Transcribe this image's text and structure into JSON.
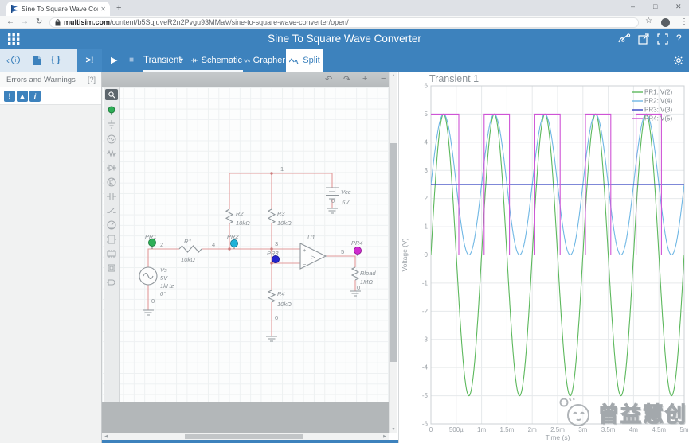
{
  "browser": {
    "tab": {
      "title": "Sine To Square Wave Convert..."
    },
    "address": {
      "domain": "multisim.com",
      "path": "/content/b5SqjuveR2n2Pvgu93MMaV/sine-to-square-wave-converter/open/"
    }
  },
  "icons": {
    "tab_close": "✕",
    "new_tab": "+",
    "win_min": "–",
    "win_max": "□",
    "win_close": "✕",
    "back": "←",
    "forward": "→",
    "reload": "↻",
    "star": "☆",
    "menu": "⋮",
    "help": "?",
    "play": "▶",
    "stop": "■",
    "caret_down": "▾",
    "undo": "↶",
    "redo": "↷",
    "zoom_in": "+",
    "zoom_out": "−",
    "panel_collapse": "‹",
    "panel_info": "i",
    "braces": "{ }",
    "errors_tab": ">!",
    "err_exclaim": "!",
    "err_warn": "▲",
    "err_info": "i",
    "scroll_up": "▲",
    "scroll_down": "▼",
    "scroll_left": "◀",
    "scroll_right": "▶"
  },
  "app_header": {
    "title": "Sine To Square Wave Converter"
  },
  "toolbar": {
    "sim_mode": "Transient",
    "tabs": {
      "schematic": "Schematic",
      "grapher": "Grapher",
      "split": "Split"
    }
  },
  "errors_panel": {
    "title": "Errors and Warnings",
    "help_badge": "[?]"
  },
  "schematic": {
    "probe_colors": {
      "pr1": "#2fae57",
      "pr2": "#1fb2d8",
      "pr3": "#2424cf",
      "pr4": "#cf2bcf"
    },
    "labels": {
      "node1": "1",
      "node2": "2",
      "node3": "3",
      "node4": "4",
      "node5": "5",
      "pr1": "PR1",
      "pr2": "PR2",
      "pr3": "PR3",
      "pr4": "PR4",
      "r1_ref": "R1",
      "r1_val": "10kΩ",
      "r2_ref": "R2",
      "r2_val": "10kΩ",
      "r3_ref": "R3",
      "r3_val": "10kΩ",
      "r4_ref": "R4",
      "r4_val": "10kΩ",
      "r4_node0": "0",
      "rload_ref": "Rload",
      "rload_val": "1MΩ",
      "rload_node0": "0",
      "u1_ref": "U1",
      "opamp_plus": "+",
      "opamp_minus": "−",
      "opamp_comp": ">",
      "vs_ref": "Vs",
      "vs_v": "5V",
      "vs_f": "1kHz",
      "vs_ph": "0°",
      "vs_node0": "0",
      "vcc_ref": "Vcc",
      "vcc_val": "5V",
      "vcc_node0": "0"
    }
  },
  "grapher": {
    "title": "Transient 1"
  },
  "watermark": {
    "text": "曾益慧创"
  },
  "chart_data": {
    "type": "line",
    "title": "Transient 1",
    "xlabel": "Time (s)",
    "ylabel": "Voltage (V)",
    "xlim": [
      0,
      0.005
    ],
    "ylim": [
      -6,
      6
    ],
    "x_ticks": [
      "0",
      "500µ",
      "1m",
      "1.5m",
      "2m",
      "2.5m",
      "3m",
      "3.5m",
      "4m",
      "4.5m",
      "5m"
    ],
    "y_ticks": [
      "6",
      "5",
      "4",
      "3",
      "2",
      "1",
      "0",
      "-1",
      "-2",
      "-3",
      "-4",
      "-5",
      "-6"
    ],
    "grid": true,
    "legend_position": "top-right",
    "series": [
      {
        "name": "PR1: V(2)",
        "color": "#5cb85c",
        "kind": "sine",
        "amplitude": 5,
        "offset": 0,
        "frequency_hz": 1000,
        "phase_deg": 0
      },
      {
        "name": "PR2: V(4)",
        "color": "#6fb7e4",
        "kind": "sine",
        "amplitude": 2.5,
        "offset": 2.5,
        "frequency_hz": 1000,
        "phase_deg": 0
      },
      {
        "name": "PR3: V(3)",
        "color": "#3340c0",
        "kind": "constant",
        "value": 2.5
      },
      {
        "name": "PR4: V(5)",
        "color": "#cf54d6",
        "kind": "square",
        "high": 5,
        "low": 0,
        "initial": "high",
        "edge_times_s": [
          0.00055,
          0.00105,
          0.00155,
          0.00205,
          0.00255,
          0.00305,
          0.00355,
          0.00405,
          0.00455
        ]
      }
    ]
  }
}
